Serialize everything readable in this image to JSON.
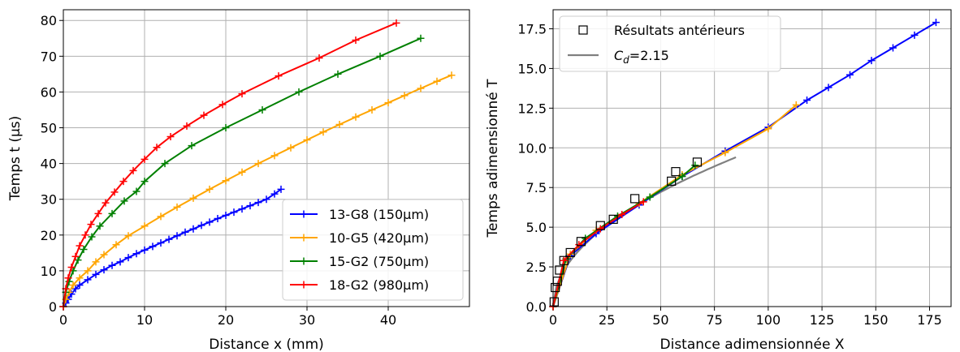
{
  "chart_data": [
    {
      "type": "line",
      "xlabel": "Distance x (mm)",
      "ylabel": "Temps t (µs)",
      "xlim": [
        0,
        50
      ],
      "ylim": [
        0,
        83
      ],
      "xticks": [
        0,
        10,
        20,
        30,
        40
      ],
      "yticks": [
        0,
        10,
        20,
        30,
        40,
        50,
        60,
        70,
        80
      ],
      "grid": true,
      "legend_position": "lower-right",
      "series": [
        {
          "name": "13-G8 (150µm)",
          "color": "#0000ff",
          "marker": "+",
          "points": [
            [
              0,
              0
            ],
            [
              0.3,
              1
            ],
            [
              0.6,
              2
            ],
            [
              1,
              3.5
            ],
            [
              1.5,
              5
            ],
            [
              2,
              6
            ],
            [
              3,
              7.5
            ],
            [
              4,
              9
            ],
            [
              5,
              10.3
            ],
            [
              6,
              11.5
            ],
            [
              7,
              12.5
            ],
            [
              8,
              13.7
            ],
            [
              9,
              14.8
            ],
            [
              10,
              15.8
            ],
            [
              11,
              16.8
            ],
            [
              12,
              17.8
            ],
            [
              13,
              18.8
            ],
            [
              14,
              19.8
            ],
            [
              15,
              20.8
            ],
            [
              16,
              21.7
            ],
            [
              17,
              22.7
            ],
            [
              18,
              23.6
            ],
            [
              19,
              24.6
            ],
            [
              20,
              25.5
            ],
            [
              21,
              26.4
            ],
            [
              22,
              27.3
            ],
            [
              23,
              28.2
            ],
            [
              24,
              29.1
            ],
            [
              25,
              30
            ],
            [
              26,
              31.5
            ],
            [
              26.8,
              32.8
            ]
          ]
        },
        {
          "name": "10-G5 (420µm)",
          "color": "#ffa500",
          "marker": "+",
          "points": [
            [
              0,
              0
            ],
            [
              0.3,
              2
            ],
            [
              0.7,
              4
            ],
            [
              1.2,
              6
            ],
            [
              2,
              8
            ],
            [
              3,
              10
            ],
            [
              4,
              12.5
            ],
            [
              5,
              14.5
            ],
            [
              6.5,
              17.3
            ],
            [
              8,
              19.8
            ],
            [
              10,
              22.5
            ],
            [
              12,
              25.2
            ],
            [
              14,
              27.8
            ],
            [
              16,
              30.3
            ],
            [
              18,
              32.8
            ],
            [
              20,
              35.2
            ],
            [
              22,
              37.6
            ],
            [
              24,
              40
            ],
            [
              26,
              42.2
            ],
            [
              28,
              44.4
            ],
            [
              30,
              46.6
            ],
            [
              32,
              48.8
            ],
            [
              34,
              50.9
            ],
            [
              36,
              53
            ],
            [
              38,
              55
            ],
            [
              40,
              57
            ],
            [
              42,
              59
            ],
            [
              44,
              61
            ],
            [
              46,
              63
            ],
            [
              47.8,
              64.7
            ]
          ]
        },
        {
          "name": "15-G2 (750µm)",
          "color": "#008000",
          "marker": "+",
          "points": [
            [
              0,
              0
            ],
            [
              0.3,
              4
            ],
            [
              0.7,
              7
            ],
            [
              1.2,
              10
            ],
            [
              1.8,
              13
            ],
            [
              2.5,
              16
            ],
            [
              3.5,
              19.5
            ],
            [
              4.5,
              22.5
            ],
            [
              6,
              26
            ],
            [
              7.5,
              29.5
            ],
            [
              9,
              32.2
            ],
            [
              10,
              35
            ],
            [
              12.5,
              40
            ],
            [
              15.8,
              45
            ],
            [
              20,
              50
            ],
            [
              24.5,
              55
            ],
            [
              29,
              60
            ],
            [
              33.8,
              65
            ],
            [
              39,
              70
            ],
            [
              44,
              75
            ]
          ]
        },
        {
          "name": "18-G2 (980µm)",
          "color": "#ff0000",
          "marker": "+",
          "points": [
            [
              0,
              0
            ],
            [
              0.3,
              5
            ],
            [
              0.6,
              8
            ],
            [
              1,
              11
            ],
            [
              1.5,
              14
            ],
            [
              2,
              17
            ],
            [
              2.7,
              20
            ],
            [
              3.4,
              23
            ],
            [
              4.3,
              26
            ],
            [
              5.2,
              29
            ],
            [
              6.3,
              32
            ],
            [
              7.4,
              35
            ],
            [
              8.6,
              38
            ],
            [
              10,
              41.2
            ],
            [
              11.5,
              44.5
            ],
            [
              13.2,
              47.5
            ],
            [
              15.2,
              50.5
            ],
            [
              17.3,
              53.5
            ],
            [
              19.6,
              56.5
            ],
            [
              22,
              59.5
            ],
            [
              26.5,
              64.5
            ],
            [
              31.5,
              69.5
            ],
            [
              36,
              74.5
            ],
            [
              41,
              79.3
            ]
          ]
        }
      ]
    },
    {
      "type": "line",
      "xlabel": "Distance adimensionnée X",
      "ylabel": "Temps adimensionné T",
      "xlim": [
        0,
        185
      ],
      "ylim": [
        0,
        18.7
      ],
      "xticks": [
        0,
        25,
        50,
        75,
        100,
        125,
        150,
        175
      ],
      "yticks": [
        0.0,
        2.5,
        5.0,
        7.5,
        10.0,
        12.5,
        15.0,
        17.5
      ],
      "grid": true,
      "legend_position": "upper-left",
      "reference_points": {
        "name": "Résultats antérieurs",
        "marker": "square",
        "points": [
          [
            0.5,
            0.3
          ],
          [
            1,
            1.2
          ],
          [
            2,
            1.6
          ],
          [
            3,
            2.3
          ],
          [
            5,
            2.9
          ],
          [
            8,
            3.4
          ],
          [
            13,
            4.1
          ],
          [
            22,
            5.1
          ],
          [
            28,
            5.5
          ],
          [
            38,
            6.8
          ],
          [
            55,
            7.9
          ],
          [
            57,
            8.5
          ],
          [
            67,
            9.1
          ]
        ]
      },
      "model_curve": {
        "name": "Cd=2.15",
        "label_base": "C",
        "label_sub": "d",
        "label_value": "=2.15",
        "color": "#808080"
      },
      "series": [
        {
          "name": "13-G8 (150µm)",
          "color": "#0000ff",
          "points": [
            [
              0,
              0
            ],
            [
              8,
              3.2
            ],
            [
              20,
              4.6
            ],
            [
              40,
              6.4
            ],
            [
              60,
              8.2
            ],
            [
              80,
              9.8
            ],
            [
              100,
              11.3
            ],
            [
              118,
              13
            ],
            [
              128,
              13.8
            ],
            [
              138,
              14.6
            ],
            [
              148,
              15.5
            ],
            [
              158,
              16.3
            ],
            [
              168,
              17.1
            ],
            [
              178,
              17.9
            ]
          ]
        },
        {
          "name": "10-G5 (420µm)",
          "color": "#ffa500",
          "points": [
            [
              0,
              0
            ],
            [
              8,
              3.3
            ],
            [
              20,
              4.8
            ],
            [
              40,
              6.5
            ],
            [
              60,
              8.3
            ],
            [
              80,
              9.7
            ],
            [
              100,
              11.2
            ],
            [
              113,
              12.7
            ]
          ]
        },
        {
          "name": "15-G2 (750µm)",
          "color": "#008000",
          "points": [
            [
              0,
              0
            ],
            [
              6,
              3
            ],
            [
              15,
              4.3
            ],
            [
              30,
              5.7
            ],
            [
              45,
              6.9
            ],
            [
              60,
              8.2
            ],
            [
              66,
              8.9
            ]
          ]
        },
        {
          "name": "18-G2 (980µm)",
          "color": "#ff0000",
          "points": [
            [
              0,
              0
            ],
            [
              5,
              2.9
            ],
            [
              12,
              3.9
            ],
            [
              22,
              4.9
            ],
            [
              32,
              5.8
            ],
            [
              42,
              6.6
            ]
          ]
        }
      ]
    }
  ]
}
